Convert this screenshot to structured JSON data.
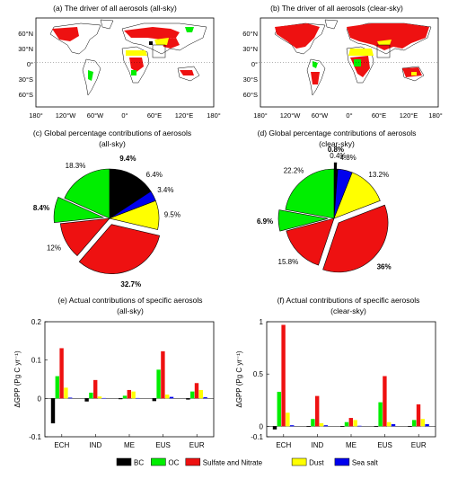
{
  "colors": {
    "BC": "#000000",
    "OC": "#00ee00",
    "Sulfate and Nitrate": "#ee1111",
    "Dust": "#ffff00",
    "Sea salt": "#0000ee",
    "ocean": "#ffffff",
    "land": "#ffffff"
  },
  "legend": [
    {
      "label": "BC",
      "color": "#000000"
    },
    {
      "label": "OC",
      "color": "#00ee00"
    },
    {
      "label": "Sulfate and Nitrate",
      "color": "#ee1111"
    },
    {
      "label": "Dust",
      "color": "#ffff00"
    },
    {
      "label": "Sea salt",
      "color": "#0000ee"
    }
  ],
  "maps": [
    {
      "title": "(a) The driver of all aerosols (all-sky)",
      "lon_ticks": [
        "180°",
        "120°W",
        "60°W",
        "0°",
        "60°E",
        "120°E",
        "180°"
      ],
      "lat_ticks": [
        "60°N",
        "30°N",
        "0°",
        "30°S",
        "60°S"
      ]
    },
    {
      "title": "(b) The driver of all aerosols (clear-sky)",
      "lon_ticks": [
        "180°",
        "120°W",
        "60°W",
        "0°",
        "60°E",
        "120°E",
        "180°"
      ],
      "lat_ticks": [
        "60°N",
        "30°N",
        "0°",
        "30°S",
        "60°S"
      ]
    }
  ],
  "chart_data": [
    {
      "type": "pie",
      "title": "(c) Global percentage contributions of aerosols",
      "subtitle": "(all-sky)",
      "slices": [
        {
          "label": "BC",
          "value": 9.4,
          "text": "9.4%",
          "bold": true,
          "exploded": false
        },
        {
          "label": "BC",
          "value": 6.4,
          "text": "6.4%",
          "bold": false,
          "exploded": false
        },
        {
          "label": "Sea salt",
          "value": 3.4,
          "text": "3.4%",
          "bold": false,
          "exploded": false
        },
        {
          "label": "Dust",
          "value": 9.5,
          "text": "9.5%",
          "bold": false,
          "exploded": false
        },
        {
          "label": "Sulfate and Nitrate",
          "value": 32.7,
          "text": "32.7%",
          "bold": true,
          "exploded": true
        },
        {
          "label": "Sulfate and Nitrate",
          "value": 12,
          "text": "12%",
          "bold": false,
          "exploded": false
        },
        {
          "label": "OC",
          "value": 8.4,
          "text": "8.4%",
          "bold": true,
          "exploded": true
        },
        {
          "label": "OC",
          "value": 18.3,
          "text": "18.3%",
          "bold": false,
          "exploded": false
        }
      ]
    },
    {
      "type": "pie",
      "title": "(d) Global percentage contributions of aerosols",
      "subtitle": "(clear-sky)",
      "slices": [
        {
          "label": "BC",
          "value": 0.8,
          "text": "0.8%",
          "bold": true,
          "exploded": true
        },
        {
          "label": "BC",
          "value": 0.4,
          "text": "0.4%",
          "bold": false,
          "exploded": false
        },
        {
          "label": "Sea salt",
          "value": 4.8,
          "text": "4.8%",
          "bold": false,
          "exploded": false
        },
        {
          "label": "Dust",
          "value": 13.2,
          "text": "13.2%",
          "bold": false,
          "exploded": false
        },
        {
          "label": "Sulfate and Nitrate",
          "value": 36,
          "text": "36%",
          "bold": true,
          "exploded": true
        },
        {
          "label": "Sulfate and Nitrate",
          "value": 15.8,
          "text": "15.8%",
          "bold": false,
          "exploded": false
        },
        {
          "label": "OC",
          "value": 6.9,
          "text": "6.9%",
          "bold": true,
          "exploded": true
        },
        {
          "label": "OC",
          "value": 22.2,
          "text": "22.2%",
          "bold": false,
          "exploded": false
        }
      ]
    },
    {
      "type": "bar",
      "title": "(e) Actual contributions of specific aerosols",
      "subtitle": "(all-sky)",
      "ylabel": "ΔGPP (Pg C yr⁻¹)",
      "ylim": [
        -0.1,
        0.2
      ],
      "yticks": [
        -0.1,
        0,
        0.1,
        0.2
      ],
      "ytick_labels": [
        "-0.1",
        "0",
        "0.1",
        "0.2"
      ],
      "categories": [
        "ECH",
        "IND",
        "ME",
        "EUS",
        "EUR"
      ],
      "series": [
        {
          "name": "BC",
          "values": [
            -0.065,
            -0.008,
            -0.002,
            -0.007,
            -0.003
          ]
        },
        {
          "name": "OC",
          "values": [
            0.058,
            0.015,
            0.007,
            0.075,
            0.018
          ]
        },
        {
          "name": "Sulfate and Nitrate",
          "values": [
            0.131,
            0.048,
            0.022,
            0.123,
            0.04
          ]
        },
        {
          "name": "Dust",
          "values": [
            0.028,
            0.005,
            0.018,
            0.01,
            0.022
          ]
        },
        {
          "name": "Sea salt",
          "values": [
            0.002,
            0.001,
            0.001,
            0.004,
            0.003
          ]
        }
      ]
    },
    {
      "type": "bar",
      "title": "(f) Actual contributions of specific aerosols",
      "subtitle": "(clear-sky)",
      "ylabel": "ΔGPP (Pg C yr⁻¹)",
      "ylim": [
        -0.1,
        1
      ],
      "yticks": [
        -0.1,
        0,
        0.5,
        1
      ],
      "ytick_labels": [
        "-0.1",
        "0",
        "0.5",
        "1"
      ],
      "categories": [
        "ECH",
        "IND",
        "ME",
        "EUS",
        "EUR"
      ],
      "series": [
        {
          "name": "BC",
          "values": [
            -0.03,
            -0.005,
            -0.003,
            -0.005,
            -0.004
          ]
        },
        {
          "name": "OC",
          "values": [
            0.33,
            0.07,
            0.04,
            0.23,
            0.06
          ]
        },
        {
          "name": "Sulfate and Nitrate",
          "values": [
            0.97,
            0.29,
            0.08,
            0.48,
            0.21
          ]
        },
        {
          "name": "Dust",
          "values": [
            0.13,
            0.03,
            0.06,
            0.04,
            0.07
          ]
        },
        {
          "name": "Sea salt",
          "values": [
            0.01,
            0.01,
            0.005,
            0.02,
            0.02
          ]
        }
      ]
    }
  ]
}
